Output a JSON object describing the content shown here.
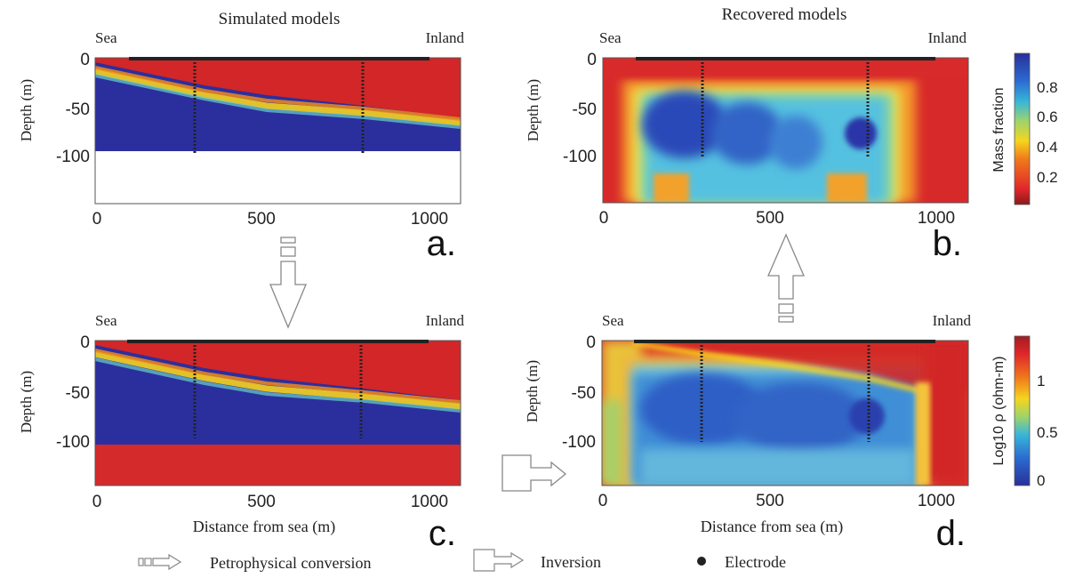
{
  "titles": {
    "left": "Simulated models",
    "right": "Recovered models"
  },
  "colors": {
    "seawater": "#2b2f9e",
    "freshwater": "#d9262b",
    "frame": "#333333",
    "electrode": "#222222",
    "arrow_stroke": "#888888"
  },
  "chart_data": [
    {
      "id": "a",
      "type": "heatmap",
      "panel_label": "a.",
      "title": "Simulated models",
      "ylabel": "Depth (m)",
      "xlabel": "",
      "sea_label": "Sea",
      "inland_label": "Inland",
      "xlim": [
        0,
        1100
      ],
      "ylim": [
        -140,
        0
      ],
      "xticks": [
        0,
        500,
        1000
      ],
      "yticks": [
        0,
        -50,
        -100
      ],
      "quantity": "mass_fraction",
      "domain_bottom": -90,
      "interface_depth": [
        {
          "x": 0,
          "y": -10
        },
        {
          "x": 300,
          "y": -35
        },
        {
          "x": 800,
          "y": -52
        },
        {
          "x": 1100,
          "y": -60
        }
      ],
      "electrode_line": {
        "x_start": 100,
        "x_end": 1000
      },
      "boreholes": [
        {
          "x": 300,
          "depth_to": -92
        },
        {
          "x": 800,
          "depth_to": -92
        }
      ]
    },
    {
      "id": "b",
      "type": "heatmap",
      "panel_label": "b.",
      "title": "Recovered models",
      "ylabel": "Depth (m)",
      "xlabel": "",
      "sea_label": "Sea",
      "inland_label": "Inland",
      "xlim": [
        0,
        1100
      ],
      "ylim": [
        -140,
        0
      ],
      "xticks": [
        0,
        500,
        1000
      ],
      "yticks": [
        0,
        -50,
        -100
      ],
      "quantity": "mass_fraction",
      "colorbar": {
        "label": "Mass fraction",
        "ticks": [
          0.8,
          0.6,
          0.4,
          0.2
        ],
        "range": [
          0,
          1
        ]
      },
      "electrode_line": {
        "x_start": 100,
        "x_end": 1000
      },
      "boreholes": [
        {
          "x": 300,
          "depth_to": -98
        },
        {
          "x": 800,
          "depth_to": -98
        }
      ]
    },
    {
      "id": "c",
      "type": "heatmap",
      "panel_label": "c.",
      "title": "",
      "ylabel": "Depth (m)",
      "xlabel": "Distance from sea (m)",
      "sea_label": "Sea",
      "inland_label": "Inland",
      "xlim": [
        0,
        1100
      ],
      "ylim": [
        -140,
        0
      ],
      "xticks": [
        0,
        500,
        1000
      ],
      "yticks": [
        0,
        -50,
        -100
      ],
      "quantity": "log10_resistivity",
      "resistive_base_top": -100,
      "interface_depth": [
        {
          "x": 0,
          "y": -10
        },
        {
          "x": 300,
          "y": -35
        },
        {
          "x": 800,
          "y": -52
        },
        {
          "x": 1100,
          "y": -60
        }
      ],
      "electrode_line": {
        "x_start": 100,
        "x_end": 1000
      },
      "boreholes": [
        {
          "x": 300,
          "depth_to": -95
        },
        {
          "x": 800,
          "depth_to": -95
        }
      ]
    },
    {
      "id": "d",
      "type": "heatmap",
      "panel_label": "d.",
      "title": "",
      "ylabel": "Depth (m)",
      "xlabel": "Distance from sea (m)",
      "sea_label": "Sea",
      "inland_label": "Inland",
      "xlim": [
        0,
        1100
      ],
      "ylim": [
        -140,
        0
      ],
      "xticks": [
        0,
        500,
        1000
      ],
      "yticks": [
        0,
        -50,
        -100
      ],
      "quantity": "log10_resistivity",
      "colorbar": {
        "label": "Log10 ρ (ohm-m)",
        "ticks": [
          1,
          0.5,
          0
        ],
        "range": [
          0,
          1.4
        ]
      },
      "electrode_line": {
        "x_start": 100,
        "x_end": 1000
      },
      "boreholes": [
        {
          "x": 300,
          "depth_to": -98
        },
        {
          "x": 800,
          "depth_to": -98
        }
      ]
    }
  ],
  "legend": {
    "petrophysical": "Petrophysical conversion",
    "inversion": "Inversion",
    "electrode": "Electrode"
  }
}
